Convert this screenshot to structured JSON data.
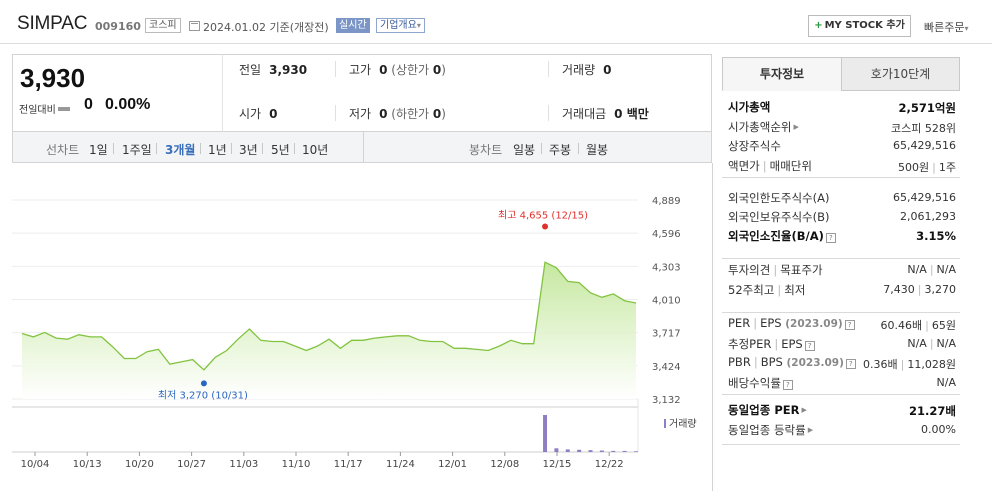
{
  "header": {
    "name": "SIMPAC",
    "code": "009160",
    "market": "코스피",
    "date": "2024.01.02  기준(개장전)",
    "live": "실시간",
    "corp_info": "기업개요",
    "mystock": "MY STOCK 추가",
    "quick": "빠른주문"
  },
  "summary": {
    "price": "3,930",
    "change_label": "전일대비",
    "change": "0",
    "change_pct": "0.00%"
  },
  "quote": {
    "prev_label": "전일",
    "prev": "3,930",
    "high_label": "고가",
    "high": "0",
    "high_sub_pre": "(상한가 ",
    "high_sub_val": "0",
    "high_sub_post": ")",
    "vol_label": "거래량",
    "vol": "0",
    "open_label": "시가",
    "open": "0",
    "low_label": "저가",
    "low": "0",
    "low_sub_pre": "(하한가 ",
    "low_sub_val": "0",
    "low_sub_post": ")",
    "amt_label": "거래대금",
    "amt": "0 백만"
  },
  "periods": {
    "line_label": "선차트",
    "line": [
      "1일",
      "1주일",
      "3개월",
      "1년",
      "3년",
      "5년",
      "10년"
    ],
    "active": "3개월",
    "candle_label": "봉차트",
    "candle": [
      "일봉",
      "주봉",
      "월봉"
    ]
  },
  "chart_data": {
    "type": "line",
    "y_ticks": [
      "4,889",
      "4,596",
      "4,303",
      "4,010",
      "3,717",
      "3,424",
      "3,132"
    ],
    "ylim": [
      3132,
      4889
    ],
    "x_ticks": [
      "10/04",
      "10/13",
      "10/20",
      "10/27",
      "11/03",
      "11/10",
      "11/17",
      "11/24",
      "12/01",
      "12/08",
      "12/15",
      "12/22"
    ],
    "max_label": "최고 4,655 (12/15)",
    "min_label": "최저 3,270 (10/31)",
    "max": 4655,
    "min": 3270,
    "volume_label": "거래량",
    "series": [
      {
        "values": [
          3710,
          3680,
          3720,
          3670,
          3660,
          3700,
          3680,
          3680,
          3590,
          3490,
          3490,
          3550,
          3570,
          3440,
          3460,
          3480,
          3390,
          3500,
          3560,
          3660,
          3750,
          3650,
          3640,
          3640,
          3600,
          3560,
          3600,
          3660,
          3580,
          3650,
          3650,
          3670,
          3680,
          3690,
          3690,
          3650,
          3640,
          3640,
          3580,
          3580,
          3570,
          3560,
          3600,
          3650,
          3620,
          3620,
          4340,
          4290,
          4170,
          4160,
          4070,
          4030,
          4060,
          4000,
          3980
        ],
        "volume": [
          0,
          0,
          0,
          0,
          0,
          0,
          0,
          0,
          0,
          0,
          0,
          0,
          0,
          0,
          0,
          0,
          0,
          0,
          0,
          0,
          0,
          0,
          0,
          0,
          0,
          0,
          0,
          0,
          0,
          0,
          0,
          0,
          0,
          0,
          0,
          0,
          0,
          0,
          0,
          0,
          0,
          0,
          0,
          0,
          0,
          0,
          100,
          10,
          7,
          6,
          5,
          4,
          3,
          3,
          2
        ]
      }
    ]
  },
  "panel": {
    "tab_active": "투자정보",
    "tab_other": "호가10단계",
    "rows1": [
      {
        "k": "시가총액",
        "v": "2,571억원",
        "bold": true
      },
      {
        "k": "시가총액순위",
        "v": "코스피 528위",
        "tri": true
      },
      {
        "k": "상장주식수",
        "v": "65,429,516"
      },
      {
        "k": "액면가",
        "k2": "매매단위",
        "v": "500원",
        "v2": "1주"
      }
    ],
    "rows2": [
      {
        "k": "외국인한도주식수(A)",
        "v": "65,429,516"
      },
      {
        "k": "외국인보유주식수(B)",
        "v": "2,061,293"
      },
      {
        "k": "외국인소진율(B/A)",
        "v": "3.15%",
        "bold": true
      }
    ],
    "rows3": [
      {
        "k": "투자의견",
        "k2": "목표주가",
        "v": "N/A",
        "v2": "N/A"
      },
      {
        "k": "52주최고",
        "k2": "최저",
        "v": "7,430",
        "v2": "3,270"
      }
    ],
    "rows4": [
      {
        "k": "PER",
        "k2": "EPS",
        "dim": "(2023.09)",
        "v": "60.46배",
        "v2": "65원"
      },
      {
        "k": "추정PER",
        "k2": "EPS",
        "v": "N/A",
        "v2": "N/A"
      },
      {
        "k": "PBR",
        "k2": "BPS",
        "dim": "(2023.09)",
        "v": "0.36배",
        "v2": "11,028원"
      },
      {
        "k": "배당수익률",
        "v": "N/A"
      }
    ],
    "rows5": [
      {
        "k": "동일업종 PER",
        "v": "21.27배",
        "bold": true
      },
      {
        "k": "동일업종 등락률",
        "v": "0.00%"
      }
    ]
  },
  "colors": {
    "line": "#82c341",
    "fill_top": "#c3e79b",
    "max": "#e0312d",
    "min": "#2a66c3",
    "volume": "#8e7fc2",
    "active_period": "#3a6fb9"
  }
}
